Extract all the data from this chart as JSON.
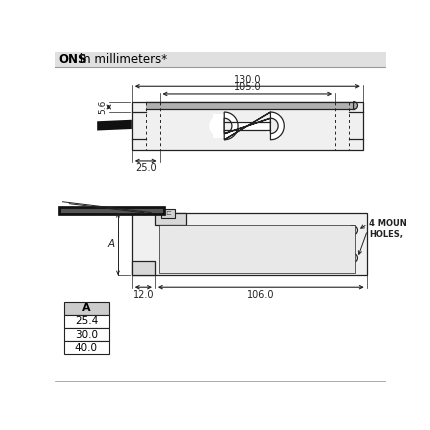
{
  "bg_color": "#ffffff",
  "header_bg": "#e0e0e0",
  "header_line_color": "#888888",
  "body_fill_light": "#f0f0f0",
  "body_fill_mid": "#d8d8d8",
  "body_fill_dark": "#b0b0b0",
  "line_color": "#222222",
  "dim_color": "#222222",
  "cable_black": "#111111",
  "title_bold": "ONS",
  "title_normal": " in millimeters*",
  "dim_130": "130.0",
  "dim_105": "105.0",
  "dim_56": "5.6",
  "dim_25": "25.0",
  "dim_12": "12.0",
  "dim_106": "106.0",
  "label_A": "A",
  "label_4mount": "4 MOUN\nHOLES,",
  "table_header": "A",
  "table_values": [
    "25.4",
    "30.0",
    "40.0"
  ]
}
